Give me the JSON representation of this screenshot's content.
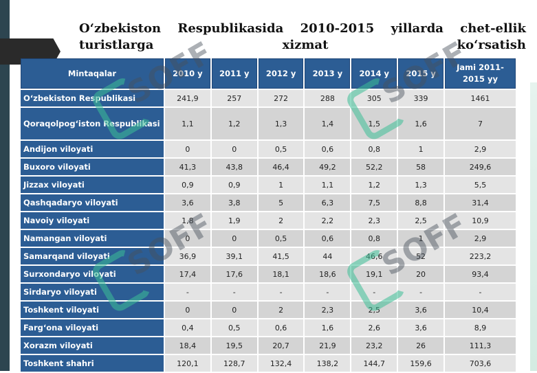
{
  "title": "O‘zbekiston Respublikasida 2010-2015 yillarda chet-ellik turistlarga xizmat ko‘rsatish",
  "table": {
    "headers": [
      "Mintaqalar",
      "2010 y",
      "2011 y",
      "2012 y",
      "2013 y",
      "2014 y",
      "2015 y",
      "Jami 2011-2015 yy"
    ],
    "rows": [
      [
        "O‘zbekiston Respublikasi",
        "241,9",
        "257",
        "272",
        "288",
        "305",
        "339",
        "1461"
      ],
      [
        "Qoraqolpog‘iston Respublikasi",
        "1,1",
        "1,2",
        "1,3",
        "1,4",
        "1,5",
        "1,6",
        "7"
      ],
      [
        "Andijon viloyati",
        "0",
        "0",
        "0,5",
        "0,6",
        "0,8",
        "1",
        "2,9"
      ],
      [
        "Buxoro viloyati",
        "41,3",
        "43,8",
        "46,4",
        "49,2",
        "52,2",
        "58",
        "249,6"
      ],
      [
        "Jizzax viloyati",
        "0,9",
        "0,9",
        "1",
        "1,1",
        "1,2",
        "1,3",
        "5,5"
      ],
      [
        "Qashqadaryo viloyati",
        "3,6",
        "3,8",
        "5",
        "6,3",
        "7,5",
        "8,8",
        "31,4"
      ],
      [
        "Navoiy viloyati",
        "1,8",
        "1,9",
        "2",
        "2,2",
        "2,3",
        "2,5",
        "10,9"
      ],
      [
        "Namangan viloyati",
        "0",
        "0",
        "0,5",
        "0,6",
        "0,8",
        "1",
        "2,9"
      ],
      [
        "Samarqand viloyati",
        "36,9",
        "39,1",
        "41,5",
        "44",
        "46,6",
        "52",
        "223,2"
      ],
      [
        "Surxondaryo viloyati",
        "17,4",
        "17,6",
        "18,1",
        "18,6",
        "19,1",
        "20",
        "93,4"
      ],
      [
        "Sirdaryo viloyati",
        "-",
        "-",
        "-",
        "-",
        "-",
        "-",
        "-"
      ],
      [
        "Toshkent viloyati",
        "0",
        "0",
        "2",
        "2,3",
        "2,5",
        "3,6",
        "10,4"
      ],
      [
        "Farg‘ona viloyati",
        "0,4",
        "0,5",
        "0,6",
        "1,6",
        "2,6",
        "3,6",
        "8,9"
      ],
      [
        "Xorazm viloyati",
        "18,4",
        "19,5",
        "20,7",
        "21,9",
        "23,2",
        "26",
        "111,3"
      ],
      [
        "Toshkent shahri",
        "120,1",
        "128,7",
        "132,4",
        "138,2",
        "144,7",
        "159,6",
        "703,6"
      ]
    ]
  },
  "watermark": {
    "text": "SOFF"
  }
}
